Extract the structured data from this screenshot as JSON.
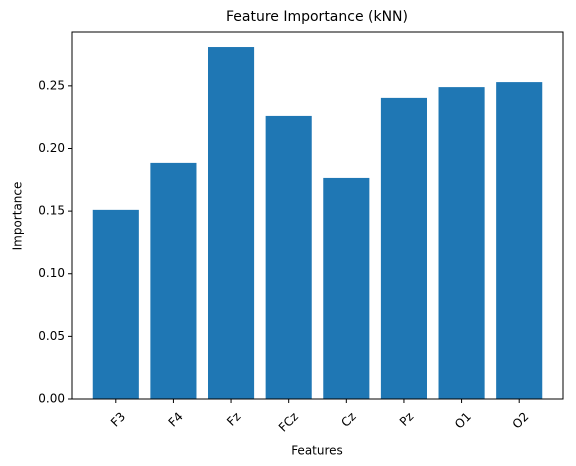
{
  "chart_data": {
    "type": "bar",
    "title": "Feature Importance (kNN)",
    "x_label": "Features",
    "y_label": "Importance",
    "categories": [
      "F3",
      "F4",
      "Fz",
      "FCz",
      "Cz",
      "Pz",
      "O1",
      "O2"
    ],
    "values": [
      0.151,
      0.1885,
      0.281,
      0.226,
      0.1765,
      0.2404,
      0.249,
      0.253
    ],
    "color": "#1f77b4",
    "ylim": [
      0,
      0.293
    ],
    "yticks": [
      {
        "value": 0,
        "label": "0.00"
      },
      {
        "value": 0.05,
        "label": "0.05"
      },
      {
        "value": 0.1,
        "label": "0.10"
      },
      {
        "value": 0.15,
        "label": "0.15"
      },
      {
        "value": 0.2,
        "label": "0.20"
      },
      {
        "value": 0.25,
        "label": "0.25"
      }
    ]
  }
}
